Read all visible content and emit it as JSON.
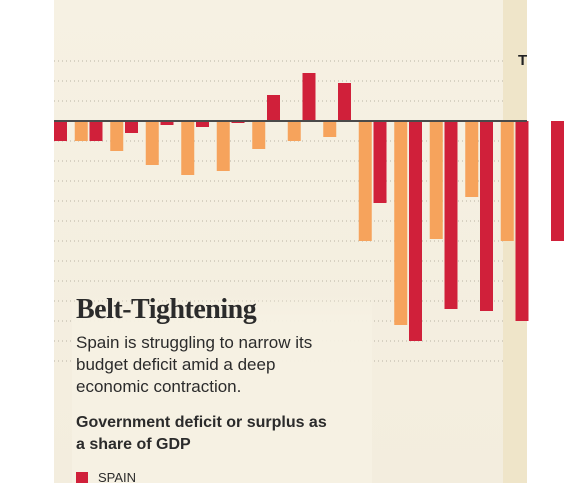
{
  "chart_data": {
    "type": "bar",
    "title": "Belt-Tightening",
    "subtitle": "Spain is struggling to narrow its budget deficit amid a deep economic contraction.",
    "description": "Government deficit or surplus as a share of GDP",
    "legend": [
      {
        "name": "SPAIN",
        "color": "#d0203a"
      }
    ],
    "inset_label": "T",
    "grid": true,
    "series": [
      {
        "name": "SPAIN",
        "color": "#d0203a",
        "values": [
          -1.0,
          -1.0,
          -0.6,
          -0.2,
          -0.3,
          -0.1,
          1.3,
          2.4,
          1.9,
          -4.1,
          -11.0,
          -9.4,
          -9.5,
          -10.0,
          -6.0
        ]
      },
      {
        "name": "",
        "color": "#f6a35c",
        "values": [
          -1.0,
          -1.5,
          -2.2,
          -2.7,
          -2.5,
          -1.4,
          -1.0,
          -0.8,
          -6.0,
          -10.2,
          -5.9,
          -3.8,
          -6.0
        ]
      }
    ],
    "ylim": [
      -12,
      3
    ]
  },
  "colors": {
    "panel": "#f4eee0",
    "spain": "#d0203a",
    "comparison": "#f6a35c"
  }
}
